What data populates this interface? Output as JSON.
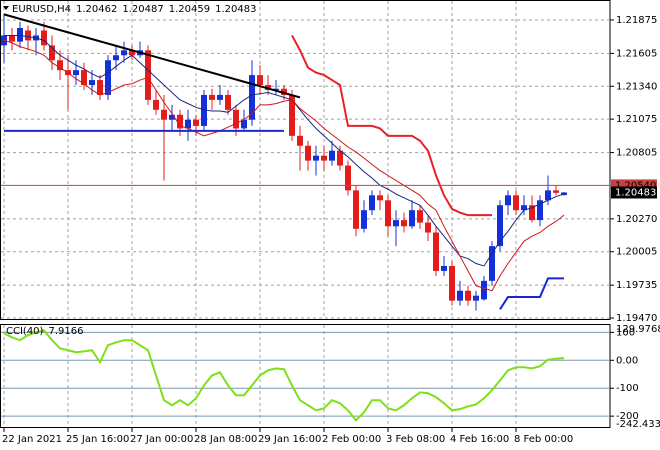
{
  "chart_data": [
    {
      "type": "candlestick",
      "title": "EURUSD,H4",
      "categories": [
        "22 Jan 2021",
        null,
        null,
        null,
        null,
        null,
        null,
        null,
        "25 Jan 16:00",
        null,
        null,
        null,
        null,
        null,
        null,
        null,
        "27 Jan 00:00",
        null,
        null,
        null,
        null,
        null,
        null,
        null,
        "28 Jan 08:00",
        null,
        null,
        null,
        null,
        null,
        null,
        null,
        "29 Jan 16:00",
        null,
        null,
        null,
        null,
        null,
        null,
        null,
        "2 Feb 00:00",
        null,
        null,
        null,
        null,
        null,
        null,
        null,
        "3 Feb 08:00",
        null,
        null,
        null,
        null,
        null,
        null,
        null,
        "4 Feb 16:00",
        null,
        null,
        null,
        null,
        null,
        null,
        null,
        "8 Feb 00:00",
        null,
        null,
        null,
        null,
        null,
        null
      ],
      "open": [
        1.2167,
        1.2175,
        1.217,
        1.2179,
        1.2171,
        1.2179,
        1.2167,
        1.2155,
        1.2147,
        1.2143,
        1.2147,
        1.2135,
        1.2139,
        1.2127,
        1.2155,
        1.2159,
        1.2163,
        1.2159,
        1.2163,
        1.2123,
        1.2115,
        1.2107,
        1.2111,
        1.21,
        1.2107,
        1.2102,
        1.2127,
        1.2123,
        1.2127,
        1.2115,
        1.21,
        1.2107,
        1.2143,
        1.2135,
        1.2131,
        1.2132,
        1.2127,
        1.2094,
        1.2086,
        1.2074,
        1.2078,
        1.2074,
        1.2082,
        1.207,
        1.205,
        1.2019,
        1.2034,
        1.2046,
        1.2042,
        1.2021,
        1.2026,
        1.2021,
        1.2034,
        1.2024,
        1.2016,
        1.1985,
        1.1989,
        1.1961,
        1.1969,
        1.1961,
        1.1962,
        1.1977,
        1.2005,
        1.2038,
        1.2046,
        1.2034,
        1.2038,
        1.2026,
        1.2042,
        1.205,
        1.20462
      ],
      "high": [
        1.2192,
        1.2181,
        1.2186,
        1.2183,
        1.2181,
        1.2186,
        1.2175,
        1.2163,
        1.2159,
        1.2155,
        1.2153,
        1.2147,
        1.2143,
        1.2159,
        1.2167,
        1.217,
        1.2167,
        1.217,
        1.2167,
        1.2131,
        1.2127,
        1.2119,
        1.2115,
        1.2115,
        1.2111,
        1.2131,
        1.2132,
        1.2135,
        1.2131,
        1.2119,
        1.2115,
        1.2155,
        1.2151,
        1.2143,
        1.2139,
        1.2135,
        1.2131,
        1.2102,
        1.209,
        1.2086,
        1.2086,
        1.209,
        1.2086,
        1.2074,
        1.2054,
        1.2042,
        1.205,
        1.205,
        1.2046,
        1.2034,
        1.2032,
        1.2042,
        1.2038,
        1.203,
        1.2021,
        1.1997,
        1.1993,
        1.1977,
        1.1973,
        1.1969,
        1.1981,
        1.2009,
        1.2042,
        1.205,
        1.205,
        1.2046,
        1.2046,
        1.2046,
        1.2062,
        1.2054,
        1.20487
      ],
      "low": [
        1.2153,
        1.2163,
        1.2165,
        1.2163,
        1.2159,
        1.2163,
        1.2147,
        1.2139,
        1.2115,
        1.2135,
        1.2131,
        1.2127,
        1.2123,
        1.2123,
        1.2147,
        1.2153,
        1.2155,
        1.2157,
        1.2119,
        1.2111,
        1.2058,
        1.2098,
        1.2094,
        1.209,
        1.2094,
        1.2098,
        1.2115,
        1.2119,
        1.2111,
        1.2094,
        1.2098,
        1.2102,
        1.2127,
        1.2127,
        1.2127,
        1.2123,
        1.209,
        1.2066,
        1.2066,
        1.2062,
        1.2066,
        1.207,
        1.2066,
        1.2046,
        1.2013,
        1.2016,
        1.203,
        1.2034,
        1.2013,
        1.2005,
        1.2016,
        1.2019,
        1.2019,
        1.2009,
        1.1981,
        1.1981,
        1.1957,
        1.1957,
        1.1957,
        1.1953,
        1.1961,
        1.1973,
        1.2001,
        1.203,
        1.203,
        1.203,
        1.2024,
        1.2021,
        1.2038,
        1.2046,
        1.20459
      ],
      "close": [
        1.2175,
        1.217,
        1.2181,
        1.2171,
        1.2175,
        1.2167,
        1.2155,
        1.2147,
        1.2143,
        1.2147,
        1.2135,
        1.2139,
        1.2127,
        1.2155,
        1.2159,
        1.2163,
        1.2159,
        1.2163,
        1.2123,
        1.2115,
        1.2107,
        1.2111,
        1.21,
        1.2107,
        1.2102,
        1.2127,
        1.2123,
        1.2127,
        1.2115,
        1.21,
        1.2107,
        1.2143,
        1.2135,
        1.2131,
        1.2132,
        1.2127,
        1.2094,
        1.2086,
        1.2074,
        1.2078,
        1.2074,
        1.2082,
        1.207,
        1.205,
        1.2019,
        1.2034,
        1.2046,
        1.2042,
        1.2021,
        1.2026,
        1.2021,
        1.2034,
        1.2024,
        1.2016,
        1.1985,
        1.1989,
        1.1961,
        1.1969,
        1.1961,
        1.1965,
        1.1977,
        1.2005,
        1.2038,
        1.2046,
        1.2034,
        1.2038,
        1.2026,
        1.2042,
        1.205,
        1.2048,
        1.20483
      ],
      "up_color": "#1430d8",
      "down_color": "#e41c1c",
      "lines": [
        {
          "color": "#1a2580",
          "values": [
            1.2175,
            1.2175,
            1.2175,
            1.2174,
            1.2173,
            1.2171,
            1.2165,
            1.2159,
            1.2155,
            1.2151,
            1.2148,
            1.2144,
            1.2141,
            1.2145,
            1.215,
            1.2155,
            1.2159,
            1.2153,
            1.2147,
            1.2141,
            1.2135,
            1.2129,
            1.2123,
            1.212,
            1.2117,
            1.2115,
            1.2114,
            1.2114,
            1.2113,
            1.2118,
            1.2123,
            1.2127,
            1.2128,
            1.2129,
            1.2127,
            1.2125,
            1.2123,
            1.2115,
            1.2107,
            1.21,
            1.2094,
            1.2088,
            1.2082,
            1.2077,
            1.2071,
            1.2065,
            1.206,
            1.2054,
            1.2051,
            1.2047,
            1.2044,
            1.2041,
            1.2038,
            1.203,
            1.2021,
            1.2013,
            1.2005,
            1.1997,
            1.1995,
            1.1991,
            1.1989,
            1.1999,
            1.2009,
            1.2017,
            1.2026,
            1.2034,
            1.2036,
            1.2039,
            1.2042,
            1.2045,
            1.2047
          ]
        },
        {
          "color": "#d01818",
          "values": [
            1.2171,
            1.2169,
            1.2166,
            1.2164,
            1.2162,
            1.2159,
            1.2153,
            1.2149,
            1.2145,
            1.214,
            1.2136,
            1.2131,
            1.2127,
            1.2129,
            1.2132,
            1.2135,
            1.2136,
            1.2139,
            1.2141,
            1.2131,
            1.2121,
            1.2112,
            1.2102,
            1.21,
            1.2097,
            1.2094,
            1.2096,
            1.2098,
            1.2101,
            1.2104,
            1.2107,
            1.2112,
            1.2119,
            1.2119,
            1.212,
            1.2122,
            1.2123,
            1.2116,
            1.2111,
            1.2106,
            1.21,
            1.2095,
            1.209,
            1.2085,
            1.2081,
            1.2076,
            1.2071,
            1.2066,
            1.2062,
            1.2058,
            1.2054,
            1.205,
            1.2046,
            1.2039,
            1.2034,
            1.2021,
            1.2009,
            1.1997,
            1.1985,
            1.1973,
            1.1971,
            1.1969,
            1.1981,
            1.1991,
            1.2,
            1.2009,
            1.2013,
            1.2016,
            1.2021,
            1.2025,
            1.203
          ]
        },
        {
          "color": "#e8202a",
          "width": 2,
          "values": [
            null,
            null,
            null,
            null,
            null,
            null,
            null,
            null,
            null,
            null,
            null,
            null,
            null,
            null,
            null,
            null,
            null,
            null,
            null,
            null,
            null,
            null,
            null,
            null,
            null,
            null,
            null,
            null,
            null,
            null,
            null,
            null,
            null,
            null,
            null,
            null,
            1.2175,
            1.2163,
            1.2149,
            1.2145,
            1.2143,
            1.2139,
            1.2135,
            1.2102,
            1.2102,
            1.2102,
            1.2102,
            1.21,
            1.2094,
            1.2094,
            1.2094,
            1.2094,
            1.209,
            1.2082,
            1.2062,
            1.2046,
            1.2035,
            1.2032,
            1.203,
            1.203,
            1.203,
            1.203,
            null,
            null,
            null,
            null,
            null,
            null,
            null,
            null,
            null
          ]
        },
        {
          "color": "#1426d8",
          "width": 2,
          "values": [
            null,
            null,
            null,
            null,
            null,
            null,
            null,
            null,
            null,
            null,
            null,
            null,
            null,
            null,
            null,
            null,
            null,
            null,
            null,
            null,
            null,
            null,
            null,
            null,
            null,
            null,
            null,
            null,
            null,
            null,
            null,
            null,
            null,
            null,
            null,
            null,
            null,
            null,
            null,
            null,
            null,
            null,
            null,
            null,
            null,
            null,
            null,
            null,
            null,
            null,
            null,
            null,
            null,
            null,
            null,
            null,
            null,
            null,
            null,
            null,
            null,
            null,
            1.1954,
            1.1964,
            1.1964,
            1.1964,
            1.1964,
            1.1964,
            1.1979,
            1.1979,
            1.1979
          ]
        }
      ],
      "segments": [
        {
          "color": "#000000",
          "width": 2,
          "x": [
            0,
            37
          ],
          "y": [
            1.2192,
            1.2125
          ]
        },
        {
          "color": "#1c2bd0",
          "width": 2,
          "x": [
            0,
            35
          ],
          "y": [
            1.2098,
            1.2098
          ]
        }
      ],
      "hlines": [
        {
          "value": 1.2054,
          "label": "1.20540",
          "color": "#c84040"
        }
      ],
      "ylim": [
        1.19454,
        1.22036
      ],
      "yticks": [
        1.21875,
        1.21605,
        {
          "value": 1.2134,
          "label": "1.21340"
        },
        1.21075,
        1.20805,
        {
          "value": 1.2027,
          "label": "1.20270"
        },
        1.20005,
        1.19735,
        {
          "value": 1.1947,
          "label": "1.19470"
        }
      ],
      "grid": true
    },
    {
      "type": "line",
      "title": "CCI(40)",
      "color": "#7ee01a",
      "values": [
        97,
        82,
        72,
        90,
        100,
        107,
        72,
        43,
        36,
        29,
        32,
        36,
        -7,
        54,
        64,
        72,
        72,
        54,
        36,
        -54,
        -143,
        -161,
        -143,
        -161,
        -136,
        -90,
        -54,
        -43,
        -90,
        -125,
        -125,
        -90,
        -54,
        -36,
        -29,
        -32,
        -90,
        -143,
        -161,
        -179,
        -172,
        -143,
        -154,
        -179,
        -215,
        -186,
        -143,
        -143,
        -172,
        -179,
        -161,
        -136,
        -115,
        -118,
        -132,
        -154,
        -179,
        -175,
        -165,
        -158,
        -136,
        -107,
        -72,
        -36,
        -25,
        -25,
        -29,
        -21,
        2,
        6,
        7.9166
      ],
      "ylim": [
        -242.4335,
        129.9768
      ],
      "yticks": [
        100,
        {
          "value": 0,
          "label": "0.00"
        },
        -100,
        -200
      ],
      "grid": true
    }
  ]
}
